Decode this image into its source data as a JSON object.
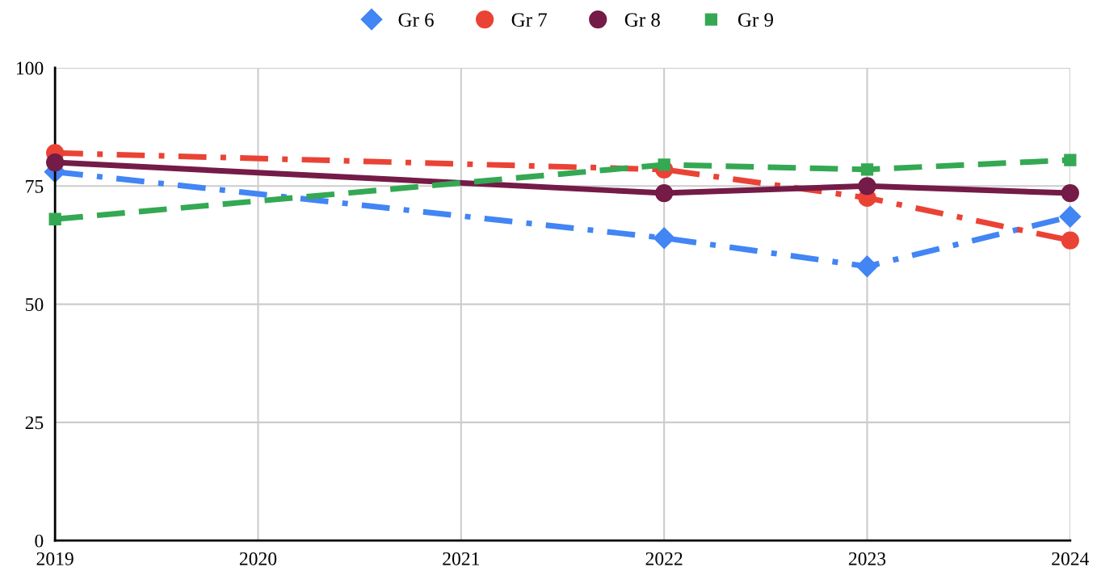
{
  "chart_data": {
    "type": "line",
    "x": [
      2019,
      2022,
      2023,
      2024
    ],
    "series": [
      {
        "name": "Gr 6",
        "color": "#4285f4",
        "values": [
          78,
          64,
          58,
          68.5
        ],
        "marker": "diamond",
        "line_style": "dashdot"
      },
      {
        "name": "Gr 7",
        "color": "#ea4335",
        "values": [
          82,
          78.5,
          72.5,
          63.5
        ],
        "marker": "circle",
        "line_style": "dashdot"
      },
      {
        "name": "Gr 8",
        "color": "#741b47",
        "values": [
          80,
          73.5,
          75,
          73.5
        ],
        "marker": "circle",
        "line_style": "solid"
      },
      {
        "name": "Gr 9",
        "color": "#34a853",
        "values": [
          68,
          79.5,
          78.5,
          80.5
        ],
        "marker": "square",
        "line_style": "dashed"
      }
    ],
    "xlim": [
      2019,
      2024
    ],
    "xticks": [
      2019,
      2020,
      2021,
      2022,
      2023,
      2024
    ],
    "ylim": [
      0,
      100
    ],
    "yticks": [
      0,
      25,
      50,
      75,
      100
    ],
    "grid": true,
    "legend": "top"
  }
}
